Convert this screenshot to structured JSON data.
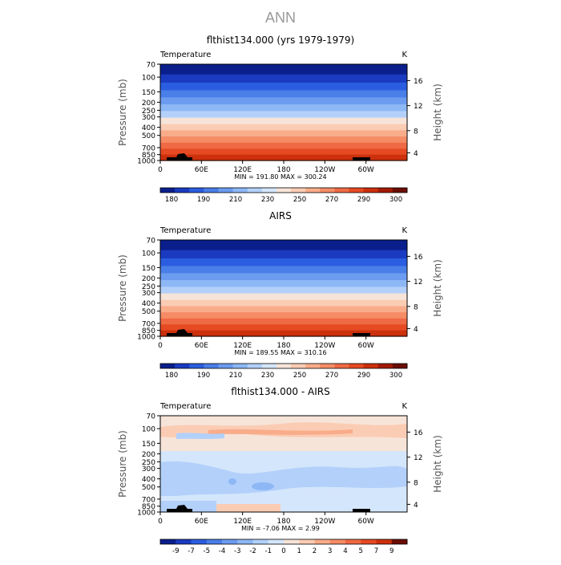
{
  "page_title": "ANN",
  "chart_data": [
    {
      "type": "heatmap",
      "title": "flthist134.000 (yrs 1979-1979)",
      "variable_label": "Temperature",
      "units": "K",
      "ylabel_left": "Pressure (mb)",
      "ylabel_right": "Height (km)",
      "left_ticks": [
        "70",
        "100",
        "150",
        "200",
        "250",
        "300",
        "400",
        "500",
        "700",
        "850",
        "1000"
      ],
      "right_ticks": [
        "16",
        "12",
        "8",
        "4"
      ],
      "x_ticks": [
        "0",
        "60E",
        "120E",
        "180",
        "120W",
        "60W"
      ],
      "stats": "MIN = 191.80  MAX = 300.24",
      "colorbar_labels": [
        "180",
        "190",
        "210",
        "230",
        "250",
        "270",
        "290",
        "300"
      ],
      "colorbar_colors": [
        "#0a1f8c",
        "#1a3bc0",
        "#2a5de0",
        "#4a7ee8",
        "#6c9cf0",
        "#8db7f5",
        "#b2d0fa",
        "#d4e6fb",
        "#f7e4d9",
        "#fbccb4",
        "#f9ac8a",
        "#f58c66",
        "#ef6a44",
        "#e64a22",
        "#cc300c",
        "#a31a05",
        "#6b0d02"
      ],
      "color_levels": [
        0,
        1,
        2,
        3,
        4,
        5,
        6,
        8,
        9,
        10,
        11,
        12,
        13,
        14
      ]
    },
    {
      "type": "heatmap",
      "title": "AIRS",
      "variable_label": "Temperature",
      "units": "K",
      "ylabel_left": "Pressure (mb)",
      "ylabel_right": "Height (km)",
      "left_ticks": [
        "70",
        "100",
        "150",
        "200",
        "250",
        "300",
        "400",
        "500",
        "700",
        "850",
        "1000"
      ],
      "right_ticks": [
        "16",
        "12",
        "8",
        "4"
      ],
      "x_ticks": [
        "0",
        "60E",
        "120E",
        "180",
        "120W",
        "60W"
      ],
      "stats": "MIN = 189.55  MAX = 310.16",
      "colorbar_labels": [
        "180",
        "190",
        "210",
        "230",
        "250",
        "270",
        "290",
        "300"
      ],
      "colorbar_colors": [
        "#0a1f8c",
        "#1a3bc0",
        "#2a5de0",
        "#4a7ee8",
        "#6c9cf0",
        "#8db7f5",
        "#b2d0fa",
        "#d4e6fb",
        "#f7e4d9",
        "#fbccb4",
        "#f9ac8a",
        "#f58c66",
        "#ef6a44",
        "#e64a22",
        "#cc300c",
        "#a31a05",
        "#6b0d02"
      ],
      "color_levels": [
        0,
        1,
        2,
        3,
        4,
        5,
        6,
        8,
        9,
        10,
        11,
        12,
        13,
        14
      ]
    },
    {
      "type": "heatmap",
      "title": "flthist134.000 - AIRS",
      "variable_label": "Temperature",
      "units": "K",
      "ylabel_left": "Pressure (mb)",
      "ylabel_right": "Height (km)",
      "left_ticks": [
        "70",
        "100",
        "150",
        "200",
        "250",
        "300",
        "400",
        "500",
        "700",
        "850",
        "1000"
      ],
      "right_ticks": [
        "16",
        "12",
        "8",
        "4"
      ],
      "x_ticks": [
        "0",
        "60E",
        "120E",
        "180",
        "120W",
        "60W"
      ],
      "stats": "MIN =   -7.06  MAX =    2.99",
      "colorbar_labels": [
        "-9",
        "-7",
        "-5",
        "-4",
        "-3",
        "-2",
        "-1",
        "0",
        "1",
        "2",
        "3",
        "4",
        "5",
        "7",
        "9"
      ],
      "colorbar_colors": [
        "#0a1f8c",
        "#1a3bc0",
        "#2a5de0",
        "#4a7ee8",
        "#6c9cf0",
        "#8db7f5",
        "#b2d0fa",
        "#d4e6fb",
        "#f7e4d9",
        "#fbccb4",
        "#f9ac8a",
        "#f58c66",
        "#ef6a44",
        "#e64a22",
        "#cc300c",
        "#6b0d02"
      ]
    }
  ]
}
